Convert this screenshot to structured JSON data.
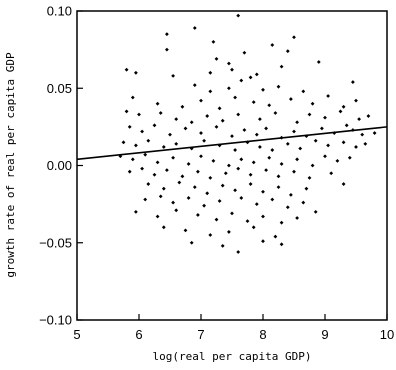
{
  "chart_data": {
    "type": "scatter",
    "xlabel": "log(real per capita GDP)",
    "ylabel": "growth rate of real per capita GDP",
    "xlim": [
      5,
      10
    ],
    "ylim": [
      -0.1,
      0.1
    ],
    "x_ticks": [
      5,
      6,
      7,
      8,
      9,
      10
    ],
    "y_ticks": [
      0.1,
      0.05,
      0.0,
      -0.05,
      -0.1
    ],
    "x_tick_labels": [
      "5",
      "6",
      "7",
      "8",
      "9",
      "10"
    ],
    "y_tick_labels": [
      "0.10",
      "0.05",
      "0.00",
      "−0.05",
      "−0.10"
    ],
    "grid": false,
    "regression_line": {
      "x": [
        5.0,
        10.0
      ],
      "y": [
        0.004,
        0.025
      ]
    },
    "points": [
      [
        7.6,
        0.097
      ],
      [
        6.9,
        0.089
      ],
      [
        6.45,
        0.085
      ],
      [
        7.2,
        0.08
      ],
      [
        8.5,
        0.083
      ],
      [
        8.15,
        0.078
      ],
      [
        6.45,
        0.075
      ],
      [
        7.7,
        0.073
      ],
      [
        8.4,
        0.074
      ],
      [
        7.25,
        0.069
      ],
      [
        7.45,
        0.066
      ],
      [
        5.8,
        0.062
      ],
      [
        5.95,
        0.06
      ],
      [
        6.55,
        0.058
      ],
      [
        7.15,
        0.06
      ],
      [
        7.5,
        0.062
      ],
      [
        7.8,
        0.057
      ],
      [
        7.9,
        0.059
      ],
      [
        8.3,
        0.064
      ],
      [
        8.9,
        0.067
      ],
      [
        7.65,
        0.055
      ],
      [
        6.9,
        0.052
      ],
      [
        7.15,
        0.048
      ],
      [
        7.45,
        0.05
      ],
      [
        8.0,
        0.049
      ],
      [
        8.25,
        0.051
      ],
      [
        8.65,
        0.048
      ],
      [
        9.45,
        0.054
      ],
      [
        5.9,
        0.044
      ],
      [
        6.3,
        0.04
      ],
      [
        6.7,
        0.038
      ],
      [
        7.0,
        0.042
      ],
      [
        7.3,
        0.037
      ],
      [
        7.55,
        0.044
      ],
      [
        7.85,
        0.041
      ],
      [
        8.1,
        0.039
      ],
      [
        8.45,
        0.043
      ],
      [
        8.8,
        0.04
      ],
      [
        9.05,
        0.045
      ],
      [
        9.3,
        0.038
      ],
      [
        9.5,
        0.042
      ],
      [
        5.8,
        0.035
      ],
      [
        6.0,
        0.033
      ],
      [
        6.35,
        0.034
      ],
      [
        6.6,
        0.03
      ],
      [
        6.85,
        0.028
      ],
      [
        7.1,
        0.032
      ],
      [
        7.35,
        0.029
      ],
      [
        7.6,
        0.033
      ],
      [
        7.95,
        0.03
      ],
      [
        8.2,
        0.034
      ],
      [
        8.55,
        0.028
      ],
      [
        8.75,
        0.033
      ],
      [
        9.0,
        0.031
      ],
      [
        9.25,
        0.035
      ],
      [
        9.55,
        0.03
      ],
      [
        9.7,
        0.032
      ],
      [
        5.85,
        0.025
      ],
      [
        6.05,
        0.022
      ],
      [
        6.25,
        0.026
      ],
      [
        6.5,
        0.02
      ],
      [
        6.75,
        0.024
      ],
      [
        7.0,
        0.021
      ],
      [
        7.25,
        0.025
      ],
      [
        7.5,
        0.019
      ],
      [
        7.7,
        0.023
      ],
      [
        7.9,
        0.02
      ],
      [
        8.05,
        0.024
      ],
      [
        8.3,
        0.018
      ],
      [
        8.5,
        0.022
      ],
      [
        8.7,
        0.019
      ],
      [
        8.95,
        0.024
      ],
      [
        9.15,
        0.021
      ],
      [
        9.35,
        0.026
      ],
      [
        9.45,
        0.023
      ],
      [
        9.6,
        0.02
      ],
      [
        9.8,
        0.021
      ],
      [
        5.75,
        0.015
      ],
      [
        5.95,
        0.013
      ],
      [
        6.15,
        0.016
      ],
      [
        6.4,
        0.012
      ],
      [
        6.6,
        0.014
      ],
      [
        6.85,
        0.011
      ],
      [
        7.05,
        0.016
      ],
      [
        7.3,
        0.013
      ],
      [
        7.55,
        0.01
      ],
      [
        7.75,
        0.015
      ],
      [
        7.95,
        0.012
      ],
      [
        8.15,
        0.01
      ],
      [
        8.4,
        0.014
      ],
      [
        8.6,
        0.011
      ],
      [
        8.85,
        0.016
      ],
      [
        9.05,
        0.013
      ],
      [
        9.3,
        0.015
      ],
      [
        9.5,
        0.012
      ],
      [
        9.65,
        0.014
      ],
      [
        5.7,
        0.006
      ],
      [
        5.9,
        0.004
      ],
      [
        6.1,
        0.007
      ],
      [
        6.3,
        0.002
      ],
      [
        6.55,
        0.005
      ],
      [
        6.8,
        0.001
      ],
      [
        7.0,
        0.006
      ],
      [
        7.2,
        0.003
      ],
      [
        7.45,
        0.0
      ],
      [
        7.65,
        0.004
      ],
      [
        7.85,
        0.002
      ],
      [
        8.1,
        0.005
      ],
      [
        8.3,
        0.001
      ],
      [
        8.55,
        0.004
      ],
      [
        8.8,
        0.0
      ],
      [
        9.0,
        0.006
      ],
      [
        9.2,
        0.003
      ],
      [
        9.4,
        0.005
      ],
      [
        5.85,
        -0.004
      ],
      [
        6.05,
        -0.002
      ],
      [
        6.25,
        -0.006
      ],
      [
        6.45,
        -0.003
      ],
      [
        6.7,
        -0.007
      ],
      [
        6.95,
        -0.004
      ],
      [
        7.15,
        -0.008
      ],
      [
        7.4,
        -0.005
      ],
      [
        7.6,
        -0.002
      ],
      [
        7.8,
        -0.006
      ],
      [
        8.05,
        -0.003
      ],
      [
        8.25,
        -0.007
      ],
      [
        8.5,
        -0.004
      ],
      [
        8.75,
        -0.008
      ],
      [
        9.1,
        -0.005
      ],
      [
        6.15,
        -0.012
      ],
      [
        6.4,
        -0.015
      ],
      [
        6.65,
        -0.011
      ],
      [
        6.9,
        -0.014
      ],
      [
        7.1,
        -0.018
      ],
      [
        7.35,
        -0.013
      ],
      [
        7.55,
        -0.016
      ],
      [
        7.8,
        -0.012
      ],
      [
        8.0,
        -0.017
      ],
      [
        8.25,
        -0.014
      ],
      [
        8.45,
        -0.019
      ],
      [
        8.7,
        -0.015
      ],
      [
        9.3,
        -0.012
      ],
      [
        6.1,
        -0.022
      ],
      [
        6.35,
        -0.02
      ],
      [
        6.55,
        -0.024
      ],
      [
        6.8,
        -0.021
      ],
      [
        7.05,
        -0.026
      ],
      [
        7.3,
        -0.023
      ],
      [
        7.65,
        -0.021
      ],
      [
        7.9,
        -0.025
      ],
      [
        8.15,
        -0.022
      ],
      [
        8.4,
        -0.027
      ],
      [
        8.65,
        -0.024
      ],
      [
        5.95,
        -0.03
      ],
      [
        6.3,
        -0.033
      ],
      [
        6.6,
        -0.029
      ],
      [
        6.95,
        -0.032
      ],
      [
        7.25,
        -0.035
      ],
      [
        7.5,
        -0.031
      ],
      [
        7.75,
        -0.036
      ],
      [
        8.0,
        -0.033
      ],
      [
        8.3,
        -0.037
      ],
      [
        8.55,
        -0.034
      ],
      [
        8.85,
        -0.03
      ],
      [
        6.4,
        -0.04
      ],
      [
        6.75,
        -0.042
      ],
      [
        7.15,
        -0.045
      ],
      [
        7.45,
        -0.043
      ],
      [
        7.85,
        -0.04
      ],
      [
        8.2,
        -0.046
      ],
      [
        6.85,
        -0.05
      ],
      [
        7.35,
        -0.052
      ],
      [
        7.6,
        -0.056
      ],
      [
        8.0,
        -0.049
      ],
      [
        8.3,
        -0.051
      ]
    ]
  }
}
